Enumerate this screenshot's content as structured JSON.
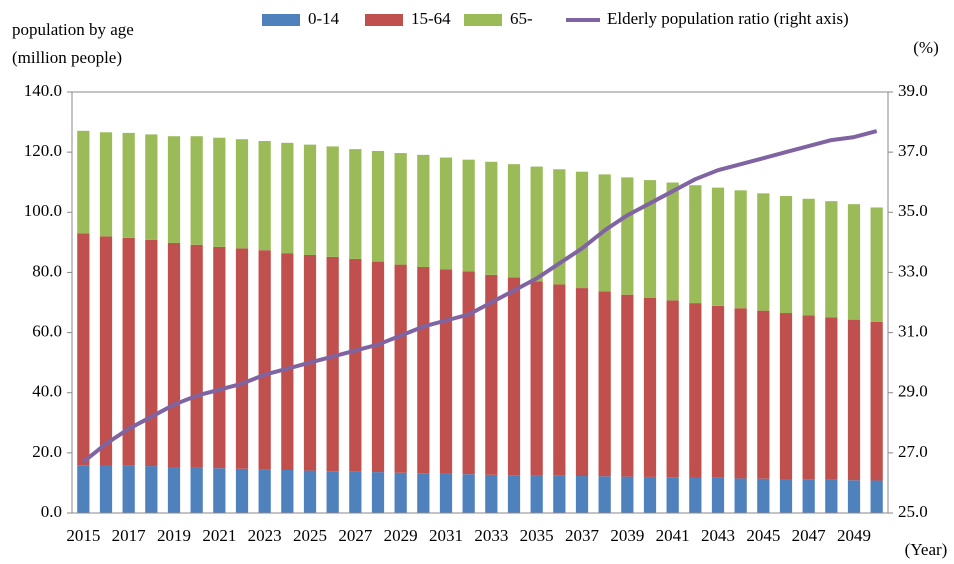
{
  "chart_data": {
    "type": "bar",
    "stacked": true,
    "y_label": [
      "population by age",
      "(million people)"
    ],
    "y2_label": "(%)",
    "x_label": "(Year)",
    "categories": [
      "2015",
      null,
      "2017",
      null,
      "2019",
      null,
      "2021",
      null,
      "2023",
      null,
      "2025",
      null,
      "2027",
      null,
      "2029",
      null,
      "2031",
      null,
      "2033",
      null,
      "2035",
      null,
      "2037",
      null,
      "2039",
      null,
      "2041",
      null,
      "2043",
      null,
      "2045",
      null,
      "2047",
      null,
      "2049",
      null
    ],
    "series": [
      {
        "name": "0-14",
        "color": "#4f81bd",
        "values": [
          15.9,
          15.8,
          15.7,
          15.6,
          15.3,
          15.1,
          14.9,
          14.7,
          14.5,
          14.3,
          14.1,
          13.9,
          13.7,
          13.6,
          13.4,
          13.2,
          13.0,
          12.9,
          12.7,
          12.6,
          12.5,
          12.4,
          12.3,
          12.2,
          12.1,
          12.0,
          11.9,
          11.8,
          11.7,
          11.5,
          11.4,
          11.3,
          11.2,
          11.1,
          10.9,
          10.8
        ]
      },
      {
        "name": "15-64",
        "color": "#c0504d",
        "values": [
          77.1,
          76.2,
          75.8,
          75.2,
          74.5,
          74.1,
          73.6,
          73.3,
          72.9,
          72.1,
          71.7,
          71.3,
          70.8,
          70.0,
          69.2,
          68.6,
          68.0,
          67.4,
          66.5,
          65.7,
          64.5,
          63.6,
          62.5,
          61.5,
          60.5,
          59.6,
          58.8,
          58.0,
          57.2,
          56.6,
          55.9,
          55.2,
          54.5,
          53.9,
          53.4,
          52.8
        ]
      },
      {
        "name": "65-",
        "color": "#9bbb59",
        "values": [
          34.1,
          34.6,
          34.9,
          35.1,
          35.5,
          36.1,
          36.3,
          36.3,
          36.3,
          36.7,
          36.7,
          36.7,
          36.5,
          36.8,
          37.1,
          37.3,
          37.2,
          37.2,
          37.6,
          37.7,
          38.2,
          38.3,
          38.7,
          38.9,
          39.0,
          39.1,
          39.2,
          39.2,
          39.3,
          39.2,
          39.0,
          38.9,
          38.8,
          38.7,
          38.4,
          38.0
        ]
      },
      {
        "name": "Elderly population ratio (right axis)",
        "color": "#8064a2",
        "type": "line",
        "axis": "y2",
        "values": [
          26.7,
          27.3,
          27.8,
          28.2,
          28.6,
          28.9,
          29.1,
          29.3,
          29.6,
          29.8,
          30.0,
          30.2,
          30.4,
          30.6,
          30.9,
          31.2,
          31.4,
          31.6,
          32.0,
          32.4,
          32.8,
          33.3,
          33.8,
          34.4,
          34.9,
          35.3,
          35.7,
          36.1,
          36.4,
          36.6,
          36.8,
          37.0,
          37.2,
          37.4,
          37.5,
          37.7
        ]
      }
    ],
    "ylim": [
      0,
      140
    ],
    "yticks": [
      {
        "value": 0,
        "label": "0.0"
      },
      {
        "value": 20,
        "label": "20.0"
      },
      {
        "value": 40,
        "label": "40.0"
      },
      {
        "value": 60,
        "label": "60.0"
      },
      {
        "value": 80,
        "label": "80.0"
      },
      {
        "value": 100,
        "label": "100.0"
      },
      {
        "value": 120,
        "label": "120.0"
      },
      {
        "value": 140,
        "label": "140.0"
      }
    ],
    "y2lim": [
      25,
      39
    ],
    "y2ticks": [
      {
        "value": 25,
        "label": "25.0"
      },
      {
        "value": 27,
        "label": "27.0"
      },
      {
        "value": 29,
        "label": "29.0"
      },
      {
        "value": 31,
        "label": "31.0"
      },
      {
        "value": 33,
        "label": "33.0"
      },
      {
        "value": 35,
        "label": "35.0"
      },
      {
        "value": 37,
        "label": "37.0"
      },
      {
        "value": 39,
        "label": "39.0"
      }
    ],
    "legend": "top"
  }
}
